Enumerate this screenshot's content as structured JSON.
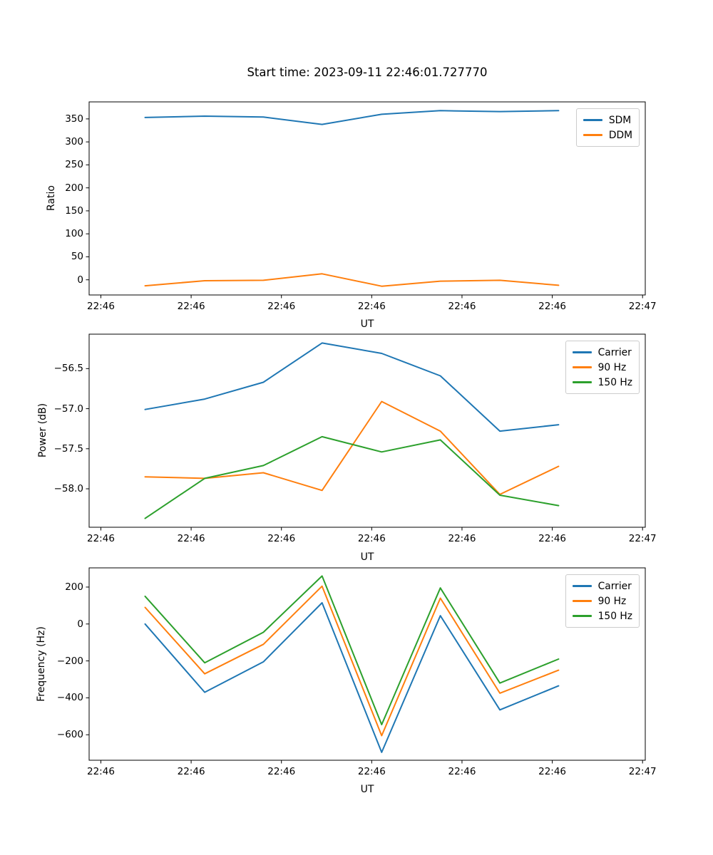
{
  "figure": {
    "title": "Start time: 2023-09-11 22:46:01.727770",
    "background": "#ffffff",
    "text_color": "#000000"
  },
  "chart_data": [
    {
      "type": "line",
      "ylabel": "Ratio",
      "xlabel": "UT",
      "x_unit": "seconds after 22:46:00 UT",
      "x": [
        4.9,
        11.5,
        18.0,
        24.5,
        31.1,
        37.6,
        44.2,
        50.7
      ],
      "xlim": [
        -1.3,
        60.3
      ],
      "ylim": [
        -33,
        387
      ],
      "grid": false,
      "xticks": {
        "values": [
          0,
          10,
          20,
          30,
          40,
          50,
          60
        ],
        "labels": [
          "22:46",
          "22:46",
          "22:46",
          "22:46",
          "22:46",
          "22:46",
          "22:47"
        ]
      },
      "yticks": {
        "values": [
          0,
          50,
          100,
          150,
          200,
          250,
          300,
          350
        ],
        "labels": [
          "0",
          "50",
          "100",
          "150",
          "200",
          "250",
          "300",
          "350"
        ]
      },
      "legend": {
        "position": "upper right",
        "entries": [
          "SDM",
          "DDM"
        ]
      },
      "series": [
        {
          "name": "SDM",
          "color": "#1f77b4",
          "values": [
            353,
            356,
            354,
            338,
            360,
            368,
            366,
            368
          ]
        },
        {
          "name": "DDM",
          "color": "#ff7f0e",
          "values": [
            -13,
            -2,
            -1,
            13,
            -14,
            -3,
            -1,
            -12
          ]
        }
      ]
    },
    {
      "type": "line",
      "ylabel": "Power (dB)",
      "xlabel": "UT",
      "x_unit": "seconds after 22:46:00 UT",
      "x": [
        4.9,
        11.5,
        18.0,
        24.5,
        31.1,
        37.6,
        44.2,
        50.7
      ],
      "xlim": [
        -1.3,
        60.3
      ],
      "ylim": [
        -58.48,
        -56.07
      ],
      "grid": false,
      "xticks": {
        "values": [
          0,
          10,
          20,
          30,
          40,
          50,
          60
        ],
        "labels": [
          "22:46",
          "22:46",
          "22:46",
          "22:46",
          "22:46",
          "22:46",
          "22:47"
        ]
      },
      "yticks": {
        "values": [
          -56.5,
          -57.0,
          -57.5,
          -58.0
        ],
        "labels": [
          "−56.5",
          "−57.0",
          "−57.5",
          "−58.0"
        ]
      },
      "legend": {
        "position": "upper right",
        "entries": [
          "Carrier",
          "90 Hz",
          "150 Hz"
        ]
      },
      "series": [
        {
          "name": "Carrier",
          "color": "#1f77b4",
          "values": [
            -57.01,
            -56.88,
            -56.67,
            -56.18,
            -56.31,
            -56.59,
            -57.28,
            -57.2
          ]
        },
        {
          "name": "90 Hz",
          "color": "#ff7f0e",
          "values": [
            -57.85,
            -57.87,
            -57.8,
            -58.02,
            -56.91,
            -57.28,
            -58.07,
            -57.72
          ]
        },
        {
          "name": "150 Hz",
          "color": "#2ca02c",
          "values": [
            -58.37,
            -57.87,
            -57.71,
            -57.35,
            -57.54,
            -57.39,
            -58.08,
            -58.21
          ]
        }
      ]
    },
    {
      "type": "line",
      "ylabel": "Frequency (Hz)",
      "xlabel": "UT",
      "x_unit": "seconds after 22:46:00 UT",
      "x": [
        4.9,
        11.5,
        18.0,
        24.5,
        31.1,
        37.6,
        44.2,
        50.7
      ],
      "xlim": [
        -1.3,
        60.3
      ],
      "ylim": [
        -738,
        304
      ],
      "grid": false,
      "xticks": {
        "values": [
          0,
          10,
          20,
          30,
          40,
          50,
          60
        ],
        "labels": [
          "22:46",
          "22:46",
          "22:46",
          "22:46",
          "22:46",
          "22:46",
          "22:47"
        ]
      },
      "yticks": {
        "values": [
          200,
          0,
          -200,
          -400,
          -600
        ],
        "labels": [
          "200",
          "0",
          "−200",
          "−400",
          "−600"
        ]
      },
      "legend": {
        "position": "upper right",
        "entries": [
          "Carrier",
          "90 Hz",
          "150 Hz"
        ]
      },
      "series": [
        {
          "name": "Carrier",
          "color": "#1f77b4",
          "values": [
            0,
            -370,
            -205,
            115,
            -695,
            45,
            -465,
            -335
          ]
        },
        {
          "name": "90 Hz",
          "color": "#ff7f0e",
          "values": [
            90,
            -270,
            -110,
            205,
            -605,
            140,
            -375,
            -250
          ]
        },
        {
          "name": "150 Hz",
          "color": "#2ca02c",
          "values": [
            150,
            -210,
            -45,
            260,
            -545,
            195,
            -320,
            -190
          ]
        }
      ]
    }
  ]
}
